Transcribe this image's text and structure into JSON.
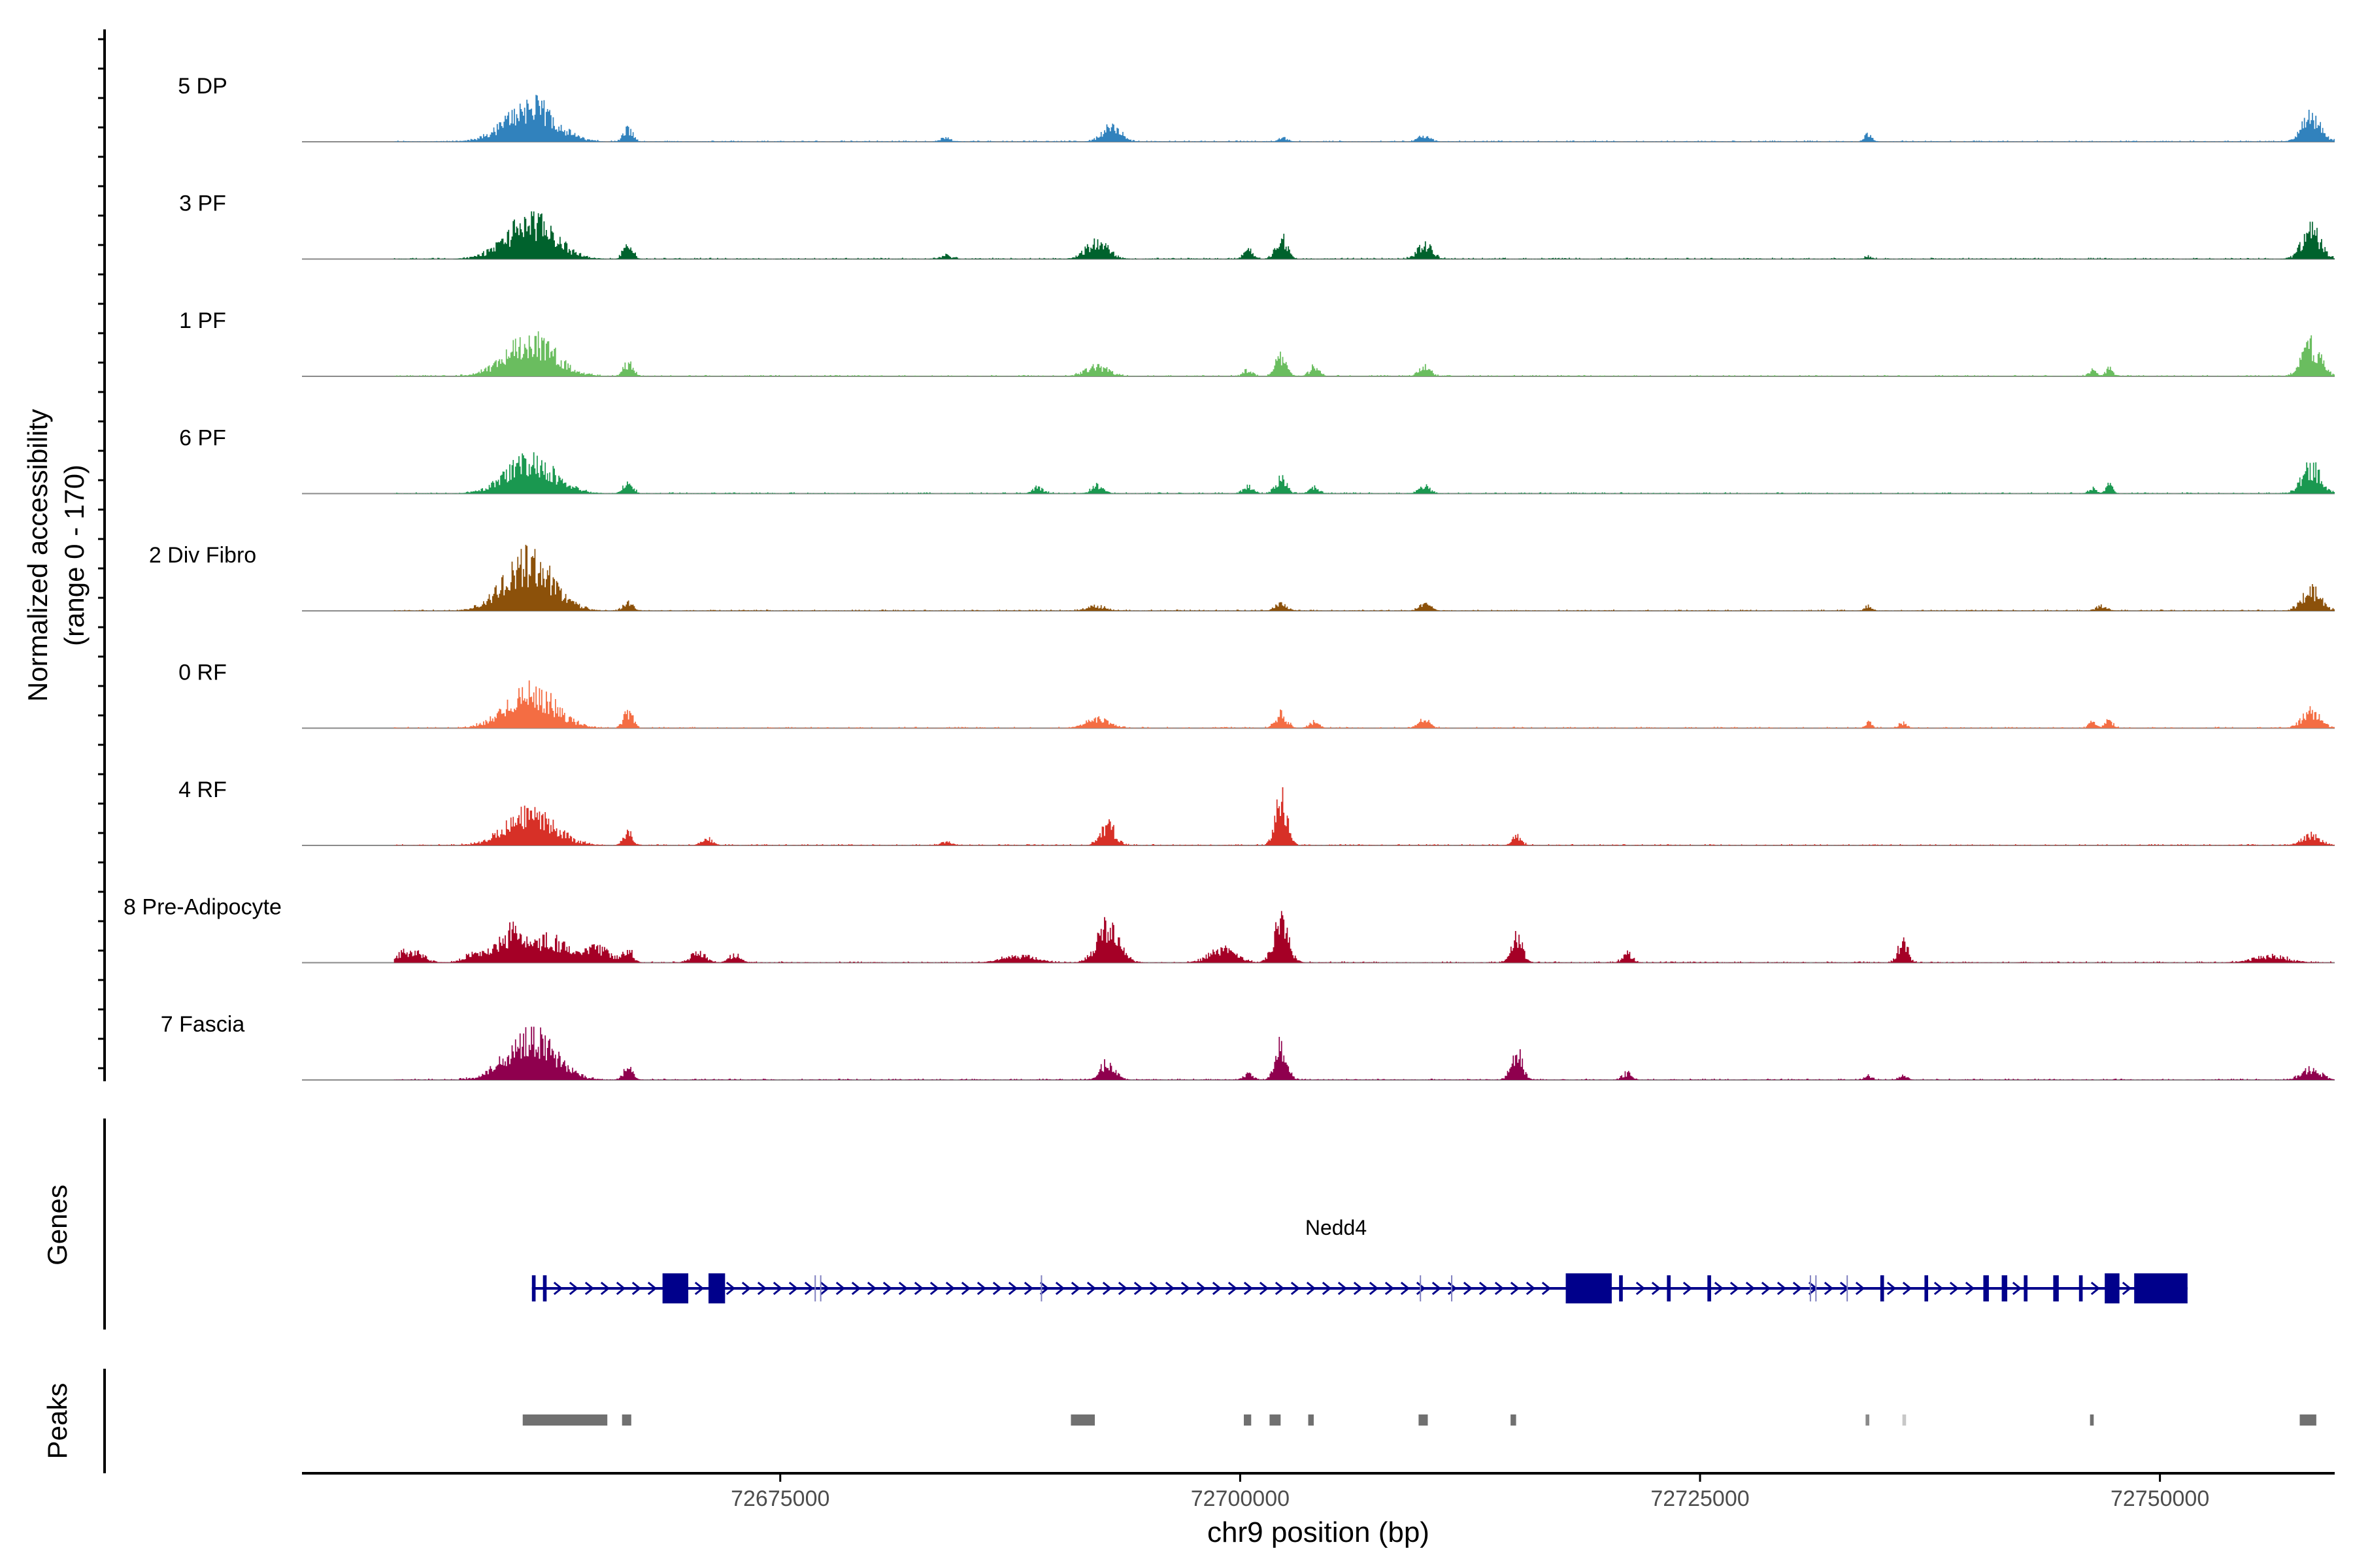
{
  "chart_data": {
    "type": "area",
    "title": "",
    "xlabel": "chr9 position (bp)",
    "ylabel_line1": "Normalized accessibility",
    "ylabel_line2": "(range 0 - 170)",
    "y_range": [
      0,
      170
    ],
    "x_range": [
      72649000,
      72759500
    ],
    "x_ticks": [
      72675000,
      72700000,
      72725000,
      72750000
    ],
    "x_tick_labels": [
      "72675000",
      "72700000",
      "72725000",
      "72750000"
    ],
    "signal_extent": [
      72654000,
      72759500
    ],
    "tracks": [
      {
        "name": "5 DP",
        "color": "#3182bd",
        "peaks": [
          [
            72661400,
            110,
            1300
          ],
          [
            72666700,
            40,
            250
          ],
          [
            72684000,
            10,
            300
          ],
          [
            72693000,
            45,
            500
          ],
          [
            72702300,
            12,
            250
          ],
          [
            72710000,
            20,
            300
          ],
          [
            72734100,
            28,
            180
          ],
          [
            72758200,
            75,
            500
          ]
        ]
      },
      {
        "name": "3 PF",
        "color": "#00622d",
        "peaks": [
          [
            72661400,
            115,
            1300
          ],
          [
            72666700,
            52,
            250
          ],
          [
            72684000,
            10,
            300
          ],
          [
            72692200,
            50,
            600
          ],
          [
            72700400,
            28,
            250
          ],
          [
            72702200,
            70,
            300
          ],
          [
            72710000,
            42,
            400
          ],
          [
            72734100,
            8,
            180
          ],
          [
            72758200,
            85,
            500
          ]
        ]
      },
      {
        "name": "1 PF",
        "color": "#6abd5f",
        "peaks": [
          [
            72661400,
            110,
            1300
          ],
          [
            72666700,
            42,
            250
          ],
          [
            72692200,
            30,
            600
          ],
          [
            72700400,
            20,
            250
          ],
          [
            72702200,
            60,
            300
          ],
          [
            72704000,
            30,
            250
          ],
          [
            72710000,
            32,
            300
          ],
          [
            72746300,
            18,
            200
          ],
          [
            72747200,
            22,
            200
          ],
          [
            72758200,
            95,
            500
          ]
        ]
      },
      {
        "name": "6 PF",
        "color": "#1a9850",
        "peaks": [
          [
            72661400,
            100,
            1300
          ],
          [
            72666700,
            40,
            250
          ],
          [
            72689000,
            18,
            300
          ],
          [
            72692200,
            25,
            300
          ],
          [
            72700400,
            22,
            250
          ],
          [
            72702200,
            45,
            300
          ],
          [
            72704000,
            20,
            250
          ],
          [
            72710000,
            22,
            300
          ],
          [
            72746300,
            15,
            200
          ],
          [
            72747200,
            30,
            200
          ],
          [
            72758200,
            80,
            500
          ]
        ]
      },
      {
        "name": "2 Div Fibro",
        "color": "#8c510a",
        "peaks": [
          [
            72661300,
            150,
            1300
          ],
          [
            72666700,
            28,
            250
          ],
          [
            72692200,
            15,
            500
          ],
          [
            72702200,
            22,
            300
          ],
          [
            72710000,
            20,
            300
          ],
          [
            72734100,
            14,
            180
          ],
          [
            72746800,
            15,
            300
          ],
          [
            72758200,
            62,
            500
          ]
        ]
      },
      {
        "name": "0 RF",
        "color": "#f46d43",
        "peaks": [
          [
            72661400,
            110,
            1300
          ],
          [
            72666700,
            52,
            250
          ],
          [
            72692200,
            28,
            600
          ],
          [
            72702200,
            45,
            300
          ],
          [
            72704000,
            20,
            250
          ],
          [
            72710000,
            25,
            300
          ],
          [
            72734100,
            20,
            180
          ],
          [
            72736000,
            18,
            200
          ],
          [
            72746300,
            22,
            200
          ],
          [
            72747200,
            25,
            200
          ],
          [
            72758200,
            50,
            500
          ]
        ]
      },
      {
        "name": "4 RF",
        "color": "#d73027",
        "peaks": [
          [
            72661400,
            95,
            1300
          ],
          [
            72666700,
            38,
            250
          ],
          [
            72671000,
            18,
            300
          ],
          [
            72684000,
            10,
            300
          ],
          [
            72692800,
            60,
            400
          ],
          [
            72702200,
            155,
            300
          ],
          [
            72715000,
            25,
            250
          ],
          [
            72758200,
            30,
            500
          ]
        ]
      },
      {
        "name": "8 Pre-Adipocyte",
        "color": "#a50026",
        "peaks": [
          [
            72654800,
            35,
            700
          ],
          [
            72658500,
            30,
            600
          ],
          [
            72660400,
            95,
            700
          ],
          [
            72662500,
            70,
            800
          ],
          [
            72665000,
            42,
            800
          ],
          [
            72666700,
            35,
            250
          ],
          [
            72670500,
            30,
            400
          ],
          [
            72672500,
            25,
            300
          ],
          [
            72688000,
            20,
            900
          ],
          [
            72692800,
            110,
            600
          ],
          [
            72699000,
            40,
            700
          ],
          [
            72702200,
            120,
            400
          ],
          [
            72715000,
            78,
            300
          ],
          [
            72721000,
            30,
            250
          ],
          [
            72736000,
            65,
            250
          ],
          [
            72756000,
            20,
            900
          ]
        ]
      },
      {
        "name": "7 Fascia",
        "color": "#8f004e",
        "peaks": [
          [
            72661400,
            130,
            1300
          ],
          [
            72666700,
            40,
            250
          ],
          [
            72692800,
            55,
            400
          ],
          [
            72700400,
            20,
            250
          ],
          [
            72702200,
            110,
            300
          ],
          [
            72715000,
            85,
            300
          ],
          [
            72721000,
            20,
            250
          ],
          [
            72734100,
            15,
            180
          ],
          [
            72736000,
            15,
            200
          ],
          [
            72758200,
            35,
            500
          ]
        ]
      }
    ],
    "genes_label": "Genes",
    "peaks_label": "Peaks",
    "gene": {
      "name": "Nedd4",
      "color": "#00008b",
      "start": 72661500,
      "end": 72751500,
      "strand": "+",
      "exons": [
        [
          72661500,
          72661700
        ],
        [
          72662100,
          72662300
        ],
        [
          72668600,
          72670000
        ],
        [
          72671100,
          72672000
        ],
        [
          72717700,
          72720200
        ],
        [
          72720600,
          72720800
        ],
        [
          72723200,
          72723400
        ],
        [
          72725400,
          72725600
        ],
        [
          72734800,
          72735000
        ],
        [
          72737200,
          72737400
        ],
        [
          72740400,
          72740700
        ],
        [
          72741400,
          72741700
        ],
        [
          72742600,
          72742800
        ],
        [
          72744200,
          72744500
        ],
        [
          72745600,
          72745800
        ],
        [
          72747000,
          72747800
        ],
        [
          72748600,
          72751500
        ]
      ],
      "thin_marks": [
        72676900,
        72677200,
        72689200,
        72709800,
        72711500,
        72731000,
        72731300,
        72733000
      ]
    },
    "peak_regions": [
      [
        72661000,
        72665600,
        "#707070"
      ],
      [
        72666400,
        72666900,
        "#707070"
      ],
      [
        72690800,
        72692100,
        "#707070"
      ],
      [
        72700200,
        72700600,
        "#707070"
      ],
      [
        72701600,
        72702200,
        "#707070"
      ],
      [
        72703700,
        72704000,
        "#707070"
      ],
      [
        72709700,
        72710200,
        "#707070"
      ],
      [
        72714700,
        72715000,
        "#707070"
      ],
      [
        72734000,
        72734200,
        "#8a8a8a"
      ],
      [
        72736000,
        72736200,
        "#c8c8c8"
      ],
      [
        72746200,
        72746400,
        "#707070"
      ],
      [
        72757600,
        72758500,
        "#707070"
      ]
    ]
  }
}
